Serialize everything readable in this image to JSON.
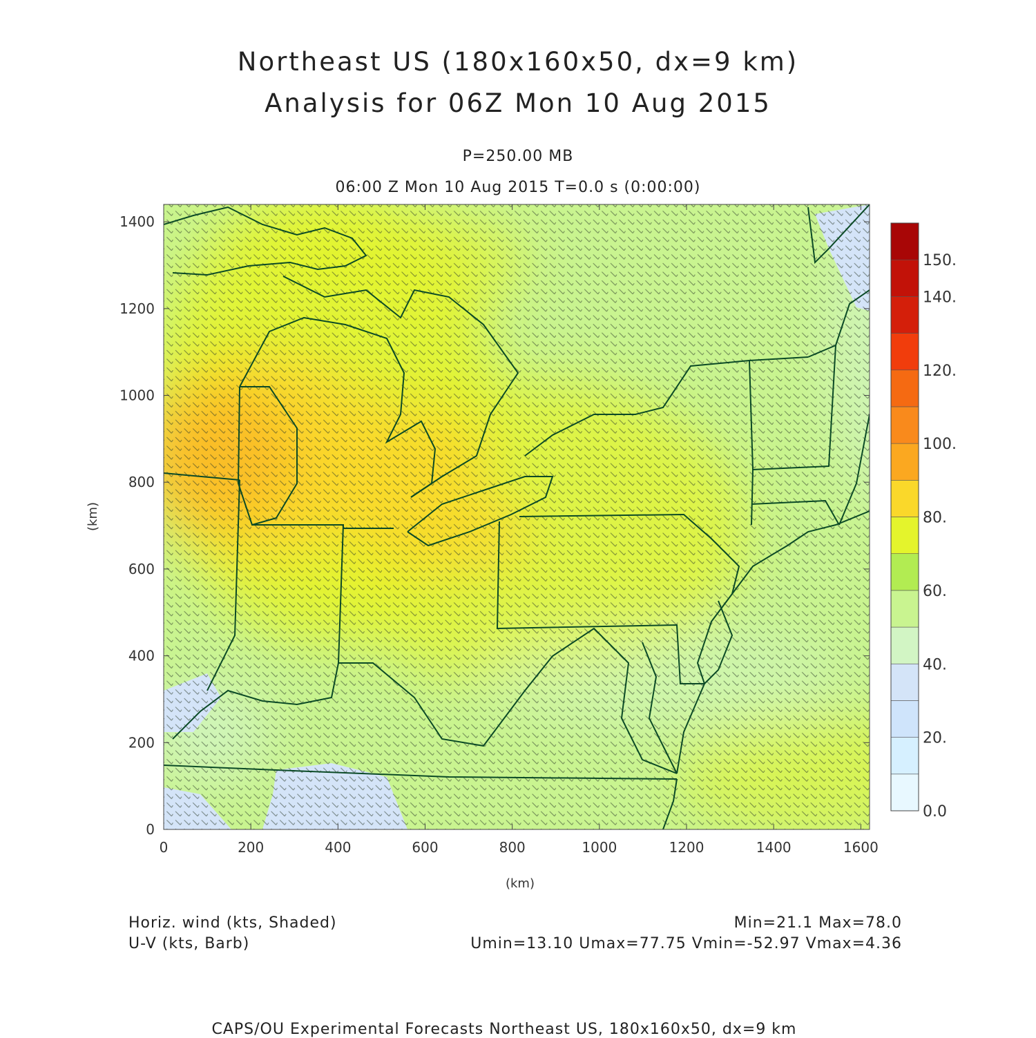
{
  "header": {
    "title_line1": "Northeast US (180x160x50, dx=9 km)",
    "title_line2": "Analysis for 06Z Mon 10 Aug 2015",
    "level": "P=250.00 MB",
    "valid_time": "06:00 Z Mon 10 Aug 2015    T=0.0 s (0:00:00)"
  },
  "map": {
    "x_axis_label": "(km)",
    "y_axis_label": "(km)",
    "x_ticks": [
      "0",
      "200",
      "400",
      "600",
      "800",
      "1000",
      "1200",
      "1400",
      "1600"
    ],
    "y_ticks": [
      "0",
      "200",
      "400",
      "600",
      "800",
      "1000",
      "1200",
      "1400"
    ],
    "x_range_km": [
      0,
      1620
    ],
    "y_range_km": [
      0,
      1440
    ],
    "land_line_color": "#0b4a26",
    "field": "horizontal wind speed (kts), shaded; U-V wind barbs"
  },
  "colorbar": {
    "labels": [
      "0.0",
      "20.",
      "40.",
      "60.",
      "80.",
      "100.",
      "120.",
      "140.",
      "150."
    ],
    "colors": [
      "#e8f8ff",
      "#d6f0ff",
      "#cfe4fb",
      "#d4e4f8",
      "#d2f5c4",
      "#c9f490",
      "#b2ec52",
      "#e4f42c",
      "#fad82a",
      "#fba820",
      "#f98a1c",
      "#f56a12",
      "#f13d0c",
      "#d41f0a",
      "#c21208",
      "#a80606"
    ]
  },
  "footer": {
    "legend_line1": "Horiz. wind (kts, Shaded)",
    "legend_line2": "U-V (kts, Barb)",
    "stats_line1": "Min=21.1 Max=78.0",
    "stats_line2": "Umin=13.10 Umax=77.75 Vmin=-52.97 Vmax=4.36",
    "credit": "CAPS/OU Experimental Forecasts  Northeast US, 180x160x50, dx=9 km"
  }
}
